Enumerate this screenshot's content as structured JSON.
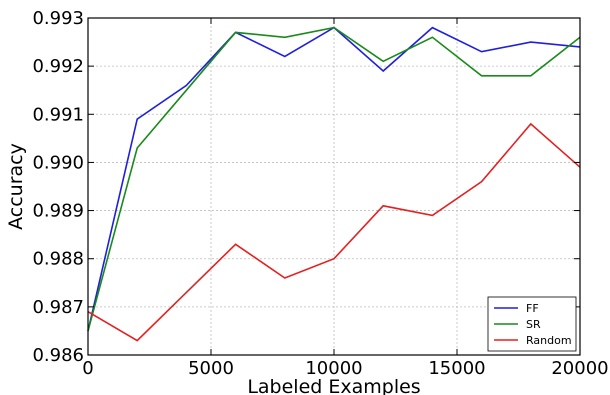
{
  "chart_data": {
    "type": "line",
    "title": "",
    "xlabel": "Labeled Examples",
    "ylabel": "Accuracy",
    "xlim": [
      0,
      20000
    ],
    "ylim": [
      0.986,
      0.993
    ],
    "xticks": [
      0,
      5000,
      10000,
      15000,
      20000
    ],
    "xtick_labels": [
      "0",
      "5000",
      "10000",
      "15000",
      "20000"
    ],
    "yticks": [
      0.986,
      0.987,
      0.988,
      0.989,
      0.99,
      0.991,
      0.992,
      0.993
    ],
    "ytick_labels": [
      "0.986",
      "0.987",
      "0.988",
      "0.989",
      "0.990",
      "0.991",
      "0.992",
      "0.993"
    ],
    "grid": true,
    "legend_position": "bottom-right",
    "series": [
      {
        "name": "FF",
        "color": "#1f1fdf",
        "x": [
          0,
          2000,
          4000,
          6000,
          8000,
          10000,
          12000,
          14000,
          16000,
          18000,
          20000
        ],
        "y": [
          0.9865,
          0.9909,
          0.9916,
          0.9927,
          0.9922,
          0.9928,
          0.9919,
          0.9928,
          0.9923,
          0.9925,
          0.9924
        ]
      },
      {
        "name": "SR",
        "color": "#1a8a1a",
        "x": [
          0,
          2000,
          4000,
          6000,
          8000,
          10000,
          12000,
          14000,
          16000,
          18000,
          20000
        ],
        "y": [
          0.9865,
          0.9903,
          0.9915,
          0.9927,
          0.9926,
          0.9928,
          0.9921,
          0.9926,
          0.9918,
          0.9918,
          0.9926
        ]
      },
      {
        "name": "Random",
        "color": "#e52020",
        "x": [
          0,
          2000,
          4000,
          6000,
          8000,
          10000,
          12000,
          14000,
          16000,
          18000,
          20000
        ],
        "y": [
          0.9869,
          0.9863,
          0.9873,
          0.9883,
          0.9876,
          0.988,
          0.9891,
          0.9889,
          0.9896,
          0.9908,
          0.9899
        ]
      }
    ]
  }
}
